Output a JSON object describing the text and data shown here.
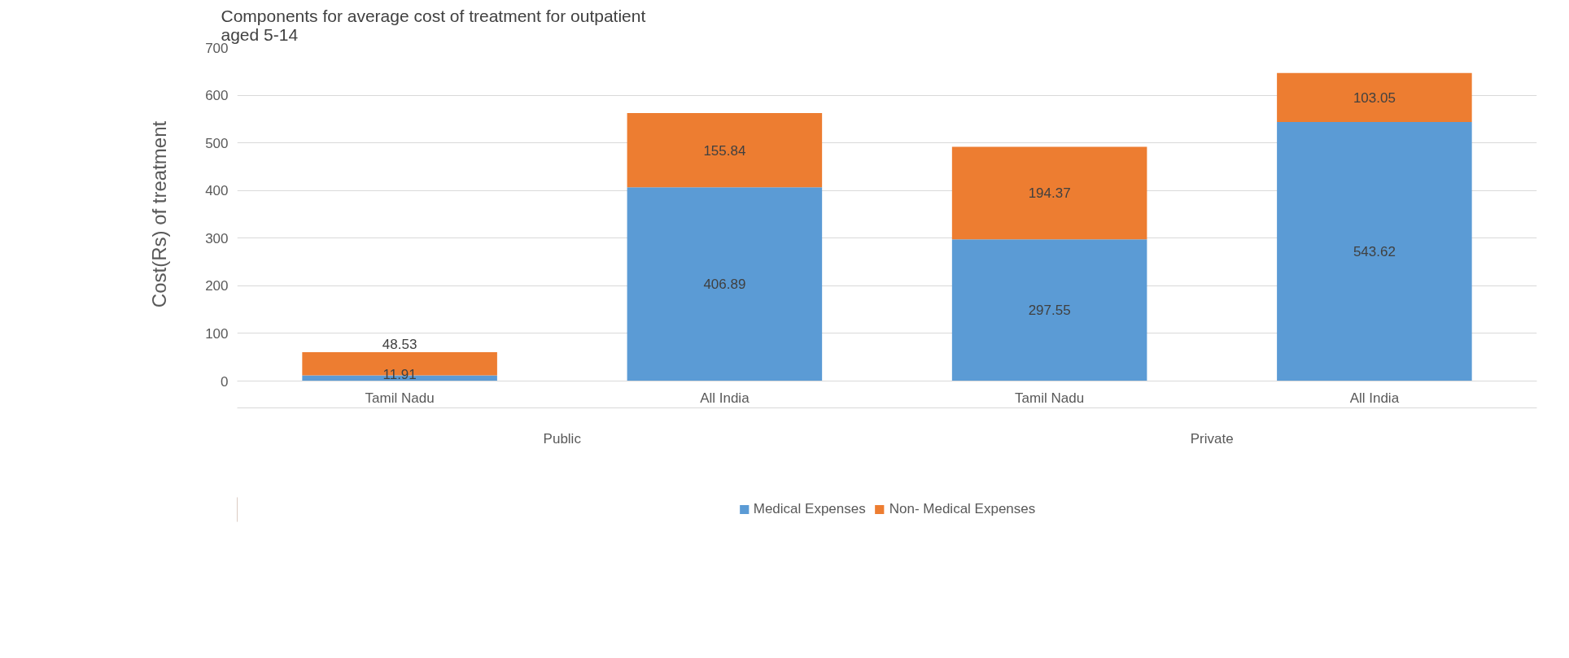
{
  "chart_data": {
    "type": "bar",
    "stacked": true,
    "title": "Components for average cost of treatment for outpatient aged 5-14",
    "ylabel": "Cost(Rs) of treatment",
    "categories": [
      "Tamil Nadu",
      "All India",
      "Tamil Nadu",
      "All India"
    ],
    "annotations": [
      "Public",
      "Private"
    ],
    "series": [
      {
        "name": "Medical Expenses",
        "color": "#5b9bd5",
        "values": [
          11.91,
          406.89,
          297.55,
          543.62
        ]
      },
      {
        "name": "Non- Medical Expenses",
        "color": "#ed7d31",
        "values": [
          48.53,
          155.84,
          194.37,
          103.05
        ]
      }
    ],
    "ylim": [
      0,
      700
    ],
    "yticks": [
      0,
      100,
      200,
      300,
      400,
      500,
      600,
      700
    ],
    "grid": "y",
    "legend": "bottom",
    "data_labels": true
  }
}
